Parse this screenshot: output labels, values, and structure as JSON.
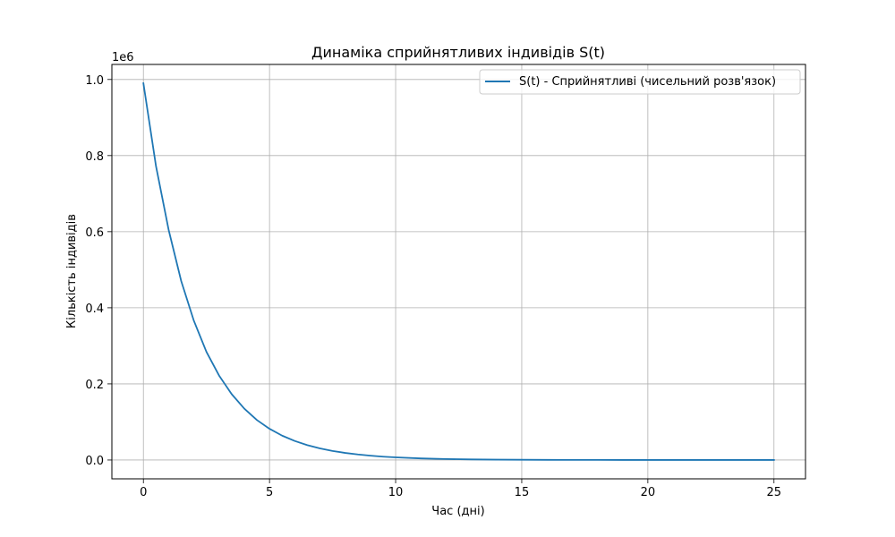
{
  "chart_data": {
    "type": "line",
    "title": "Динаміка сприйнятливих індивідів S(t)",
    "xlabel": "Час (дні)",
    "ylabel": "Кількість індивідів",
    "y_offset_text": "1e6",
    "xlim": [
      -1.25,
      26.25
    ],
    "ylim": [
      -0.0495,
      1.0395
    ],
    "y_scale_factor": 1000000,
    "xticks": [
      0,
      5,
      10,
      15,
      20,
      25
    ],
    "xtick_labels": [
      "0",
      "5",
      "10",
      "15",
      "20",
      "25"
    ],
    "yticks": [
      0.0,
      0.2,
      0.4,
      0.6,
      0.8,
      1.0
    ],
    "ytick_labels": [
      "0.0",
      "0.2",
      "0.4",
      "0.6",
      "0.8",
      "1.0"
    ],
    "grid": true,
    "legend_position": "top-right",
    "series": [
      {
        "name": "S(t) - Сприйнятливі (чисельний розв'язок)",
        "color": "#1f77b4",
        "x": [
          0,
          0.5,
          1,
          1.5,
          2,
          2.5,
          3,
          3.5,
          4,
          4.5,
          5,
          5.5,
          6,
          6.5,
          7,
          7.5,
          8,
          8.5,
          9,
          9.5,
          10,
          11,
          12,
          13,
          14,
          15,
          16,
          17,
          18,
          19,
          20,
          21,
          22,
          23,
          24,
          25
        ],
        "y": [
          990000,
          772000,
          605000,
          470000,
          366000,
          284000,
          222000,
          173000,
          135000,
          105000,
          82000,
          64000,
          50000,
          39000,
          30500,
          23800,
          18600,
          14500,
          11300,
          8800,
          6900,
          4200,
          2500,
          1500,
          900,
          600,
          350,
          210,
          130,
          80,
          50,
          30,
          20,
          12,
          7,
          4
        ]
      }
    ]
  }
}
